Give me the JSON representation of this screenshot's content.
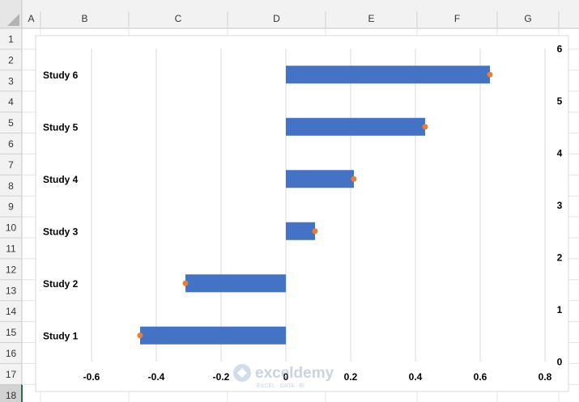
{
  "sheet": {
    "columns": [
      "A",
      "B",
      "C",
      "D",
      "E",
      "F",
      "G"
    ],
    "rows": [
      "1",
      "2",
      "3",
      "4",
      "5",
      "6",
      "7",
      "8",
      "9",
      "10",
      "11",
      "12",
      "13",
      "14",
      "15",
      "16",
      "17",
      "18"
    ],
    "active_row": "18"
  },
  "watermark": {
    "name": "exceldemy",
    "tagline": "EXCEL · DATA · BI"
  },
  "chart_data": {
    "type": "bar",
    "orientation": "horizontal",
    "categories": [
      "Study 1",
      "Study 2",
      "Study 3",
      "Study 4",
      "Study 5",
      "Study 6"
    ],
    "series": [
      {
        "values": [
          -0.45,
          -0.31,
          0.09,
          0.21,
          0.43,
          0.63
        ],
        "color": "#4472C4"
      }
    ],
    "points": [
      {
        "x": -0.45,
        "y": 0.5
      },
      {
        "x": -0.31,
        "y": 1.5
      },
      {
        "x": 0.09,
        "y": 2.5
      },
      {
        "x": 0.21,
        "y": 3.5
      },
      {
        "x": 0.43,
        "y": 4.5
      },
      {
        "x": 0.63,
        "y": 5.5
      }
    ],
    "point_color": "#ED7D31",
    "xlim": [
      -0.6,
      0.8
    ],
    "x_ticks": [
      "-0.6",
      "-0.4",
      "-0.2",
      "0",
      "0.2",
      "0.4",
      "0.6",
      "0.8"
    ],
    "y2lim": [
      0,
      6
    ],
    "y2_ticks": [
      "0",
      "1",
      "2",
      "3",
      "4",
      "5",
      "6"
    ],
    "grid": "vertical",
    "title": "",
    "xlabel": "",
    "ylabel": ""
  }
}
